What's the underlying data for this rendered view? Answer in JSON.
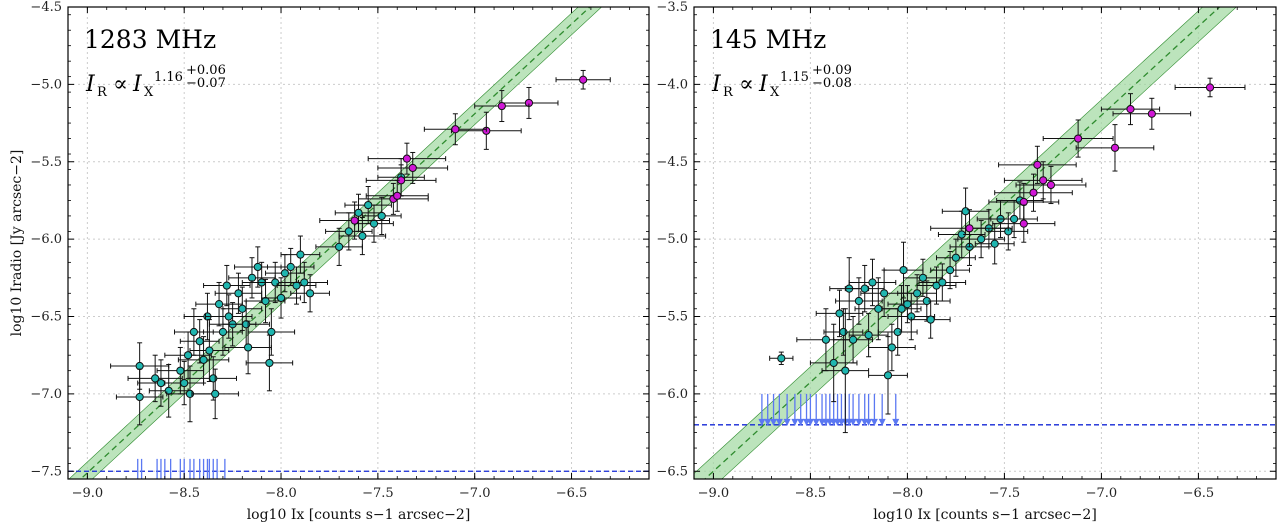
{
  "colors": {
    "fit_line": "#2e8b2e",
    "fit_band": "#9fd89f",
    "cyan_points": "#1fb6b0",
    "magenta_points": "#d017d6",
    "upper_limit_arrows": "#5b78f2",
    "threshold_line": "#1428d6",
    "errorbar": "#111111",
    "grid": "#cccccc"
  },
  "chart_data": [
    {
      "type": "scatter",
      "title": "1283 MHz",
      "relation": {
        "lhs": "I",
        "lhs_sub": "R",
        "symbol": "∝",
        "rhs": "I",
        "rhs_sub": "X",
        "exponent": "1.16",
        "err_plus": "+0.06",
        "err_minus": "−0.07"
      },
      "xlabel": "log10 Ix [counts s−1 arcsec−2]",
      "ylabel": "log10 Iradio [Jy arcsec−2]",
      "xlim": [
        -9.1,
        -6.1
      ],
      "ylim": [
        -7.55,
        -4.5
      ],
      "xticks": [
        -9.0,
        -8.5,
        -8.0,
        -7.5,
        -7.0,
        -6.5
      ],
      "xtick_labels": [
        "−9.0",
        "−8.5",
        "−8.0",
        "−7.5",
        "−7.0",
        "−6.5"
      ],
      "yticks": [
        -7.5,
        -7.0,
        -6.5,
        -6.0,
        -5.5,
        -5.0,
        -4.5
      ],
      "ytick_labels": [
        "−7.5",
        "−7.0",
        "−6.5",
        "−6.0",
        "−5.5",
        "−5.0",
        "−4.5"
      ],
      "grid": true,
      "fit": {
        "slope": 1.16,
        "intercept": 2.93,
        "band": 0.07
      },
      "threshold_y": -7.5,
      "cyan": [
        [
          -8.73,
          -6.82,
          0.15,
          0.15
        ],
        [
          -8.73,
          -7.02,
          0.12,
          0.18
        ],
        [
          -8.65,
          -6.9,
          0.14,
          0.15
        ],
        [
          -8.62,
          -6.93,
          0.12,
          0.15
        ],
        [
          -8.58,
          -6.98,
          0.1,
          0.17
        ],
        [
          -8.52,
          -6.85,
          0.12,
          0.15
        ],
        [
          -8.5,
          -6.93,
          0.1,
          0.14
        ],
        [
          -8.48,
          -6.75,
          0.12,
          0.15
        ],
        [
          -8.47,
          -7.0,
          0.12,
          0.18
        ],
        [
          -8.45,
          -6.6,
          0.1,
          0.15
        ],
        [
          -8.42,
          -6.66,
          0.1,
          0.14
        ],
        [
          -8.4,
          -6.78,
          0.13,
          0.15
        ],
        [
          -8.38,
          -6.5,
          0.12,
          0.15
        ],
        [
          -8.37,
          -6.72,
          0.1,
          0.2
        ],
        [
          -8.35,
          -6.9,
          0.12,
          0.14
        ],
        [
          -8.34,
          -7.0,
          0.12,
          0.16
        ],
        [
          -8.32,
          -6.42,
          0.12,
          0.14
        ],
        [
          -8.3,
          -6.6,
          0.1,
          0.15
        ],
        [
          -8.28,
          -6.3,
          0.12,
          0.13
        ],
        [
          -8.27,
          -6.5,
          0.12,
          0.14
        ],
        [
          -8.25,
          -6.55,
          0.12,
          0.14
        ],
        [
          -8.22,
          -6.35,
          0.12,
          0.13
        ],
        [
          -8.2,
          -6.45,
          0.1,
          0.14
        ],
        [
          -8.18,
          -6.55,
          0.12,
          0.15
        ],
        [
          -8.17,
          -6.7,
          0.12,
          0.17
        ],
        [
          -8.15,
          -6.25,
          0.12,
          0.13
        ],
        [
          -8.12,
          -6.18,
          0.12,
          0.13
        ],
        [
          -8.1,
          -6.28,
          0.1,
          0.13
        ],
        [
          -8.08,
          -6.4,
          0.1,
          0.14
        ],
        [
          -8.06,
          -6.8,
          0.12,
          0.18
        ],
        [
          -8.05,
          -6.6,
          0.12,
          0.15
        ],
        [
          -8.03,
          -6.28,
          0.12,
          0.13
        ],
        [
          -8.0,
          -6.38,
          0.1,
          0.13
        ],
        [
          -7.98,
          -6.22,
          0.1,
          0.12
        ],
        [
          -7.95,
          -6.18,
          0.12,
          0.12
        ],
        [
          -7.92,
          -6.3,
          0.1,
          0.12
        ],
        [
          -7.9,
          -6.1,
          0.1,
          0.12
        ],
        [
          -7.88,
          -6.28,
          0.12,
          0.13
        ],
        [
          -7.85,
          -6.35,
          0.1,
          0.12
        ],
        [
          -7.7,
          -6.05,
          0.12,
          0.12
        ],
        [
          -7.65,
          -5.95,
          0.12,
          0.12
        ],
        [
          -7.6,
          -5.83,
          0.12,
          0.12
        ],
        [
          -7.58,
          -5.98,
          0.12,
          0.12
        ],
        [
          -7.55,
          -5.78,
          0.12,
          0.12
        ],
        [
          -7.52,
          -5.9,
          0.1,
          0.12
        ],
        [
          -7.48,
          -5.85,
          0.1,
          0.12
        ],
        [
          -7.38,
          -5.6,
          0.12,
          0.12
        ]
      ],
      "magenta": [
        [
          -6.44,
          -4.97,
          0.14,
          0.06
        ],
        [
          -6.72,
          -5.12,
          0.15,
          0.1
        ],
        [
          -6.86,
          -5.14,
          0.14,
          0.1
        ],
        [
          -6.94,
          -5.3,
          0.18,
          0.12
        ],
        [
          -7.1,
          -5.29,
          0.16,
          0.1
        ],
        [
          -7.32,
          -5.54,
          0.18,
          0.1
        ],
        [
          -7.35,
          -5.48,
          0.2,
          0.1
        ],
        [
          -7.38,
          -5.62,
          0.18,
          0.1
        ],
        [
          -7.42,
          -5.74,
          0.18,
          0.1
        ],
        [
          -7.4,
          -5.72,
          0.16,
          0.1
        ],
        [
          -7.62,
          -5.88,
          0.18,
          0.12
        ]
      ],
      "upper_limits_x": [
        -8.74,
        -8.72,
        -8.64,
        -8.62,
        -8.6,
        -8.57,
        -8.52,
        -8.5,
        -8.47,
        -8.45,
        -8.42,
        -8.4,
        -8.38,
        -8.37,
        -8.35,
        -8.33,
        -8.29
      ],
      "upper_limit_y": -7.42
    },
    {
      "type": "scatter",
      "title": "145 MHz",
      "relation": {
        "lhs": "I",
        "lhs_sub": "R",
        "symbol": "∝",
        "rhs": "I",
        "rhs_sub": "X",
        "exponent": "1.15",
        "err_plus": "+0.09",
        "err_minus": "−0.08"
      },
      "xlabel": "log10 Ix [counts s−1 arcsec−2]",
      "ylabel": "",
      "xlim": [
        -9.1,
        -6.1
      ],
      "ylim": [
        -6.55,
        -3.5
      ],
      "xticks": [
        -9.0,
        -8.5,
        -8.0,
        -7.5,
        -7.0,
        -6.5
      ],
      "xtick_labels": [
        "−9.0",
        "−8.5",
        "−8.0",
        "−7.5",
        "−7.0",
        "−6.5"
      ],
      "yticks": [
        -6.5,
        -6.0,
        -5.5,
        -5.0,
        -4.5,
        -4.0,
        -3.5
      ],
      "ytick_labels": [
        "−6.5",
        "−6.0",
        "−5.5",
        "−5.0",
        "−4.5",
        "−4.0",
        "−3.5"
      ],
      "grid": true,
      "fit": {
        "slope": 1.15,
        "intercept": 3.85,
        "band": 0.1
      },
      "threshold_y": -6.2,
      "cyan": [
        [
          -8.65,
          -5.77,
          0.06,
          0.04
        ],
        [
          -8.42,
          -5.65,
          0.15,
          0.2
        ],
        [
          -8.38,
          -5.8,
          0.12,
          0.25
        ],
        [
          -8.35,
          -5.48,
          0.12,
          0.15
        ],
        [
          -8.33,
          -5.6,
          0.1,
          0.15
        ],
        [
          -8.32,
          -5.85,
          0.12,
          0.4
        ],
        [
          -8.3,
          -5.32,
          0.1,
          0.2
        ],
        [
          -8.28,
          -5.65,
          0.1,
          0.15
        ],
        [
          -8.25,
          -5.4,
          0.12,
          0.15
        ],
        [
          -8.22,
          -5.32,
          0.1,
          0.15
        ],
        [
          -8.2,
          -5.62,
          0.1,
          0.14
        ],
        [
          -8.18,
          -5.28,
          0.12,
          0.15
        ],
        [
          -8.15,
          -5.45,
          0.12,
          0.2
        ],
        [
          -8.12,
          -5.35,
          0.12,
          0.15
        ],
        [
          -8.1,
          -5.88,
          0.1,
          0.25
        ],
        [
          -8.08,
          -5.7,
          0.12,
          0.15
        ],
        [
          -8.05,
          -5.6,
          0.1,
          0.15
        ],
        [
          -8.03,
          -5.45,
          0.1,
          0.15
        ],
        [
          -8.02,
          -5.2,
          0.1,
          0.18
        ],
        [
          -8.0,
          -5.42,
          0.1,
          0.12
        ],
        [
          -7.98,
          -5.5,
          0.12,
          0.15
        ],
        [
          -7.95,
          -5.35,
          0.1,
          0.12
        ],
        [
          -7.92,
          -5.25,
          0.1,
          0.12
        ],
        [
          -7.9,
          -5.4,
          0.12,
          0.13
        ],
        [
          -7.88,
          -5.52,
          0.1,
          0.12
        ],
        [
          -7.85,
          -5.3,
          0.1,
          0.12
        ],
        [
          -7.82,
          -5.28,
          0.12,
          0.12
        ],
        [
          -7.78,
          -5.2,
          0.1,
          0.12
        ],
        [
          -7.75,
          -5.12,
          0.1,
          0.12
        ],
        [
          -7.72,
          -4.97,
          0.12,
          0.15
        ],
        [
          -7.7,
          -4.82,
          0.12,
          0.15
        ],
        [
          -7.68,
          -5.05,
          0.1,
          0.12
        ],
        [
          -7.62,
          -5.0,
          0.12,
          0.12
        ],
        [
          -7.58,
          -4.93,
          0.12,
          0.12
        ],
        [
          -7.55,
          -5.03,
          0.1,
          0.13
        ],
        [
          -7.52,
          -4.87,
          0.12,
          0.12
        ],
        [
          -7.48,
          -4.95,
          0.1,
          0.12
        ],
        [
          -7.45,
          -4.87,
          0.12,
          0.12
        ],
        [
          -7.42,
          -4.75,
          0.12,
          0.12
        ]
      ],
      "magenta": [
        [
          -6.44,
          -4.02,
          0.18,
          0.06
        ],
        [
          -6.74,
          -4.19,
          0.2,
          0.1
        ],
        [
          -6.85,
          -4.16,
          0.15,
          0.1
        ],
        [
          -6.93,
          -4.41,
          0.2,
          0.15
        ],
        [
          -7.12,
          -4.35,
          0.18,
          0.12
        ],
        [
          -7.26,
          -4.65,
          0.18,
          0.12
        ],
        [
          -7.3,
          -4.62,
          0.2,
          0.12
        ],
        [
          -7.33,
          -4.52,
          0.2,
          0.12
        ],
        [
          -7.35,
          -4.7,
          0.2,
          0.12
        ],
        [
          -7.4,
          -4.76,
          0.18,
          0.12
        ],
        [
          -7.4,
          -4.9,
          0.16,
          0.12
        ],
        [
          -7.68,
          -4.93,
          0.2,
          0.12
        ]
      ],
      "upper_limits_x": [
        -8.75,
        -8.72,
        -8.69,
        -8.66,
        -8.62,
        -8.58,
        -8.55,
        -8.52,
        -8.5,
        -8.47,
        -8.44,
        -8.42,
        -8.4,
        -8.38,
        -8.36,
        -8.34,
        -8.32,
        -8.3,
        -8.28,
        -8.25,
        -8.22,
        -8.2,
        -8.17,
        -8.13,
        -8.06
      ],
      "upper_limit_y": -6.0
    }
  ]
}
